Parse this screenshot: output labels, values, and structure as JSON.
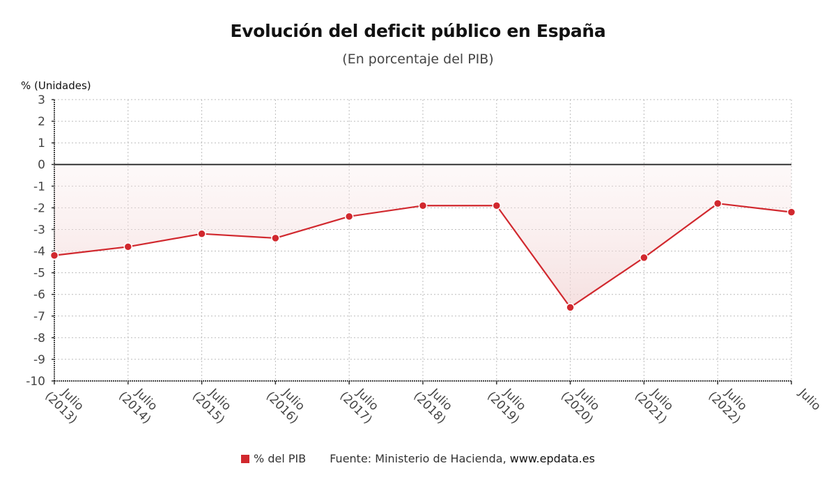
{
  "header": {
    "title": "Evolución del deficit público en España",
    "subtitle": "(En porcentaje del PIB)"
  },
  "legend": {
    "series_label": "% del PIB",
    "source_prefix": "Fuente: Ministerio de Hacienda,",
    "source_site": "www.epdata.es"
  },
  "colors": {
    "series": "#d1282e",
    "area_fill": "#f6dcdc",
    "grid": "#bbbbbb",
    "zero_line": "#333333"
  },
  "chart_data": {
    "type": "area",
    "title": "Evolución del deficit público en España",
    "subtitle": "(En porcentaje del PIB)",
    "xlabel": "",
    "ylabel": "% (Unidades)",
    "ylim": [
      -10,
      3
    ],
    "yticks": [
      3,
      2,
      1,
      0,
      -1,
      -2,
      -3,
      -4,
      -5,
      -6,
      -7,
      -8,
      -9,
      -10
    ],
    "grid": true,
    "legend_position": "bottom",
    "categories": [
      [
        "Julio",
        "(2013)"
      ],
      [
        "Julio",
        "(2014)"
      ],
      [
        "Julio",
        "(2015)"
      ],
      [
        "Julio",
        "(2016)"
      ],
      [
        "Julio",
        "(2017)"
      ],
      [
        "Julio",
        "(2018)"
      ],
      [
        "Julio",
        "(2019)"
      ],
      [
        "Julio",
        "(2020)"
      ],
      [
        "Julio",
        "(2021)"
      ],
      [
        "Julio",
        "(2022)"
      ],
      [
        "Julio",
        ""
      ]
    ],
    "series": [
      {
        "name": "% del PIB",
        "values": [
          -4.2,
          -3.8,
          -3.2,
          -3.4,
          -2.4,
          -1.9,
          -1.9,
          -6.6,
          -4.3,
          -1.8,
          -2.2
        ]
      }
    ]
  }
}
